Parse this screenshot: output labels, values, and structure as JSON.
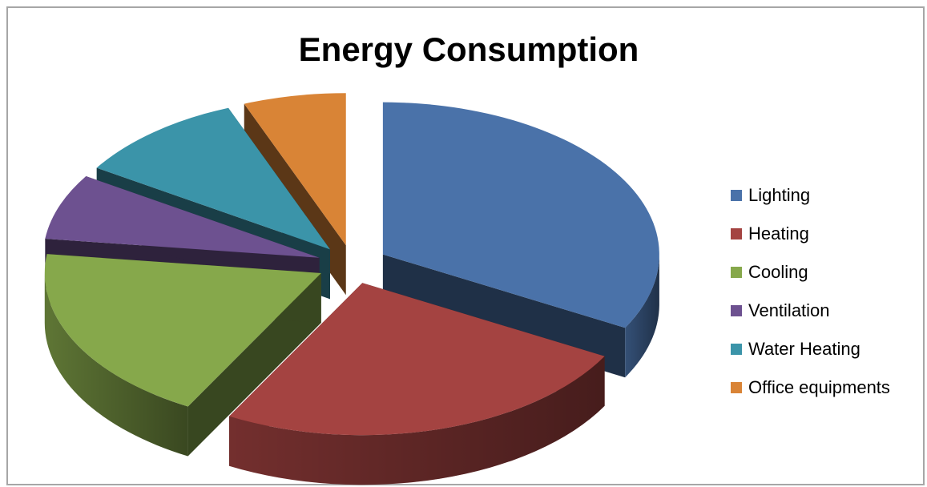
{
  "chart_data": {
    "type": "pie",
    "title": "Energy Consumption",
    "categories": [
      "Lighting",
      "Heating",
      "Cooling",
      "Ventilation",
      "Water Heating",
      "Office equipments"
    ],
    "values": [
      33,
      25,
      19,
      7,
      10,
      6
    ],
    "colors": [
      "#4a72a9",
      "#a44341",
      "#86a84b",
      "#6d5190",
      "#3b94a9",
      "#d98436"
    ],
    "exploded": true,
    "three_d": true,
    "legend_position": "right"
  }
}
